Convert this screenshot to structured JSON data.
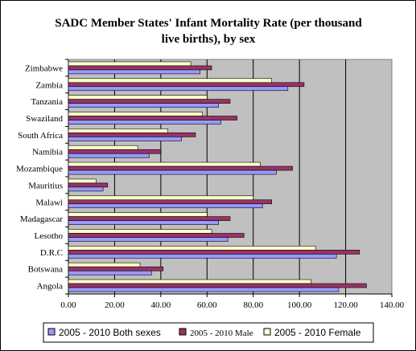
{
  "chart_data": {
    "type": "bar",
    "orientation": "horizontal",
    "title": "SADC Member States' Infant Mortality Rate (per thousand live births), by sex",
    "title_lines": [
      "SADC Member States' Infant Mortality Rate (per thousand",
      "live births), by sex"
    ],
    "categories": [
      "Angola",
      "Botswana",
      "D.R.C",
      "Lesotho",
      "Madagascar",
      "Malawi",
      "Mauritius",
      "Mozambique",
      "Namibia",
      "South Africa",
      "Swaziland",
      "Tanzania",
      "Zambia",
      "Zimbabwe"
    ],
    "series": [
      {
        "name": "2005 - 2010  Both sexes",
        "color": "#9999ff",
        "values": [
          117,
          36,
          116,
          69,
          65,
          84,
          15,
          90,
          35,
          49,
          66,
          65,
          95,
          57
        ]
      },
      {
        "name": "2005 - 2010  Male",
        "color": "#993366",
        "values": [
          129,
          41,
          126,
          76,
          70,
          88,
          17,
          97,
          40,
          55,
          73,
          70,
          102,
          62
        ]
      },
      {
        "name": "2005 - 2010  Female",
        "color": "#ffffcc",
        "values": [
          105,
          31,
          107,
          62,
          60,
          80,
          12,
          83,
          30,
          43,
          58,
          60,
          88,
          53
        ]
      }
    ],
    "xlim": [
      0,
      140
    ],
    "x_ticks": [
      "0.00",
      "20.00",
      "40.00",
      "60.00",
      "80.00",
      "100.00",
      "120.00",
      "140.00"
    ],
    "xlabel": "",
    "ylabel": "",
    "grid": true,
    "plot_background": "#c0c0c0",
    "legend_position": "bottom"
  }
}
